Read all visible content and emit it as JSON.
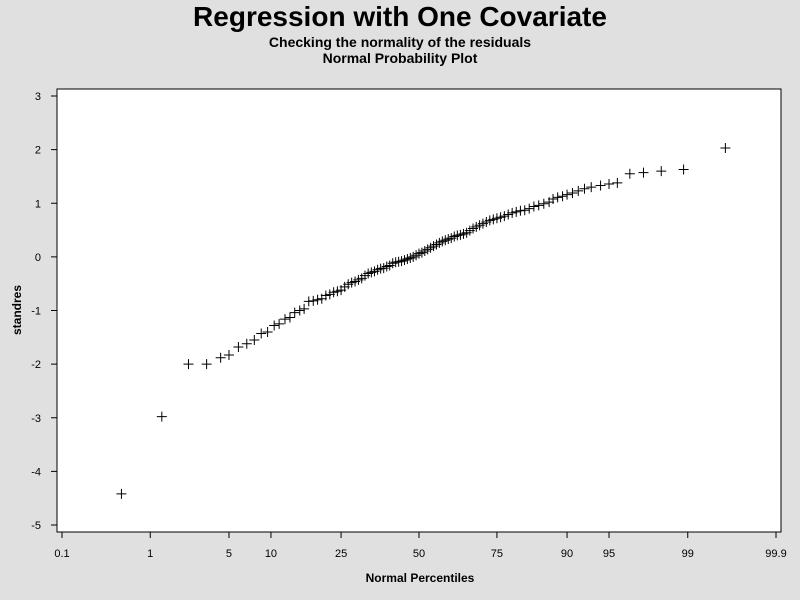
{
  "chart_data": {
    "type": "scatter",
    "title": "Regression with One Covariate",
    "subtitle": [
      "Checking the normality of the residuals",
      "Normal Probability Plot"
    ],
    "xlabel": "Normal Percentiles",
    "ylabel": "standres",
    "marker": "+",
    "x_scale": "normal-probability",
    "xlim": [
      0.1,
      99.9
    ],
    "ylim": [
      -5,
      3
    ],
    "x_ticks": [
      0.1,
      1,
      5,
      10,
      25,
      50,
      75,
      90,
      95,
      99,
      99.9
    ],
    "x_tick_labels": [
      "0.1",
      "1",
      "5",
      "10",
      "25",
      "50",
      "75",
      "90",
      "95",
      "99",
      "99.9"
    ],
    "y_ticks": [
      -5,
      -4,
      -3,
      -2,
      -1,
      0,
      1,
      2,
      3
    ],
    "y_tick_labels": [
      "-5",
      "-4",
      "-3",
      "-2",
      "-1",
      "0",
      "1",
      "2",
      "3"
    ],
    "grid": false,
    "series": [
      {
        "points": [
          [
            0.5,
            -4.42
          ],
          [
            1.3,
            -2.98
          ],
          [
            2.3,
            -2.0
          ],
          [
            3.3,
            -2.0
          ],
          [
            4.3,
            -1.88
          ],
          [
            5.0,
            -1.83
          ],
          [
            5.9,
            -1.68
          ],
          [
            6.8,
            -1.62
          ],
          [
            7.7,
            -1.55
          ],
          [
            8.6,
            -1.43
          ],
          [
            9.5,
            -1.4
          ],
          [
            10.5,
            -1.28
          ],
          [
            11.3,
            -1.25
          ],
          [
            12.3,
            -1.16
          ],
          [
            13.2,
            -1.13
          ],
          [
            14.1,
            -1.04
          ],
          [
            15.1,
            -1.0
          ],
          [
            16.0,
            -0.97
          ],
          [
            17.0,
            -0.83
          ],
          [
            18.0,
            -0.82
          ],
          [
            19.0,
            -0.8
          ],
          [
            20.0,
            -0.78
          ],
          [
            21.0,
            -0.72
          ],
          [
            22.0,
            -0.7
          ],
          [
            23.0,
            -0.66
          ],
          [
            24.0,
            -0.64
          ],
          [
            25.0,
            -0.62
          ],
          [
            26.0,
            -0.56
          ],
          [
            27.0,
            -0.51
          ],
          [
            28.0,
            -0.48
          ],
          [
            29.0,
            -0.46
          ],
          [
            30.0,
            -0.43
          ],
          [
            31.0,
            -0.4
          ],
          [
            32.0,
            -0.35
          ],
          [
            33.0,
            -0.31
          ],
          [
            34.0,
            -0.29
          ],
          [
            35.0,
            -0.27
          ],
          [
            36.0,
            -0.24
          ],
          [
            37.0,
            -0.22
          ],
          [
            38.0,
            -0.21
          ],
          [
            39.0,
            -0.18
          ],
          [
            40.0,
            -0.16
          ],
          [
            41.0,
            -0.12
          ],
          [
            42.0,
            -0.1
          ],
          [
            43.0,
            -0.09
          ],
          [
            44.0,
            -0.08
          ],
          [
            45.0,
            -0.06
          ],
          [
            46.0,
            -0.04
          ],
          [
            47.0,
            -0.02
          ],
          [
            48.0,
            0.0
          ],
          [
            49.0,
            0.03
          ],
          [
            50.0,
            0.06
          ],
          [
            51.0,
            0.08
          ],
          [
            52.0,
            0.11
          ],
          [
            53.0,
            0.14
          ],
          [
            54.0,
            0.17
          ],
          [
            55.0,
            0.2
          ],
          [
            56.0,
            0.23
          ],
          [
            57.0,
            0.26
          ],
          [
            58.0,
            0.29
          ],
          [
            59.0,
            0.31
          ],
          [
            60.0,
            0.33
          ],
          [
            61.0,
            0.35
          ],
          [
            62.0,
            0.38
          ],
          [
            63.0,
            0.4
          ],
          [
            64.0,
            0.41
          ],
          [
            65.0,
            0.43
          ],
          [
            66.0,
            0.45
          ],
          [
            67.0,
            0.49
          ],
          [
            68.0,
            0.53
          ],
          [
            69.0,
            0.56
          ],
          [
            70.0,
            0.59
          ],
          [
            71.0,
            0.62
          ],
          [
            72.0,
            0.65
          ],
          [
            73.0,
            0.68
          ],
          [
            74.0,
            0.7
          ],
          [
            75.0,
            0.72
          ],
          [
            76.0,
            0.74
          ],
          [
            77.0,
            0.76
          ],
          [
            78.0,
            0.79
          ],
          [
            79.0,
            0.82
          ],
          [
            80.0,
            0.84
          ],
          [
            81.0,
            0.86
          ],
          [
            82.0,
            0.87
          ],
          [
            83.0,
            0.9
          ],
          [
            84.0,
            0.94
          ],
          [
            85.0,
            0.96
          ],
          [
            86.0,
            0.99
          ],
          [
            87.0,
            1.02
          ],
          [
            87.7,
            1.08
          ],
          [
            88.5,
            1.11
          ],
          [
            89.3,
            1.13
          ],
          [
            90.0,
            1.16
          ],
          [
            90.8,
            1.19
          ],
          [
            91.6,
            1.23
          ],
          [
            92.4,
            1.27
          ],
          [
            93.2,
            1.3
          ],
          [
            94.2,
            1.33
          ],
          [
            95.0,
            1.36
          ],
          [
            95.7,
            1.38
          ],
          [
            96.6,
            1.55
          ],
          [
            97.4,
            1.57
          ],
          [
            98.2,
            1.6
          ],
          [
            98.9,
            1.63
          ],
          [
            99.6,
            2.03
          ]
        ]
      }
    ]
  }
}
